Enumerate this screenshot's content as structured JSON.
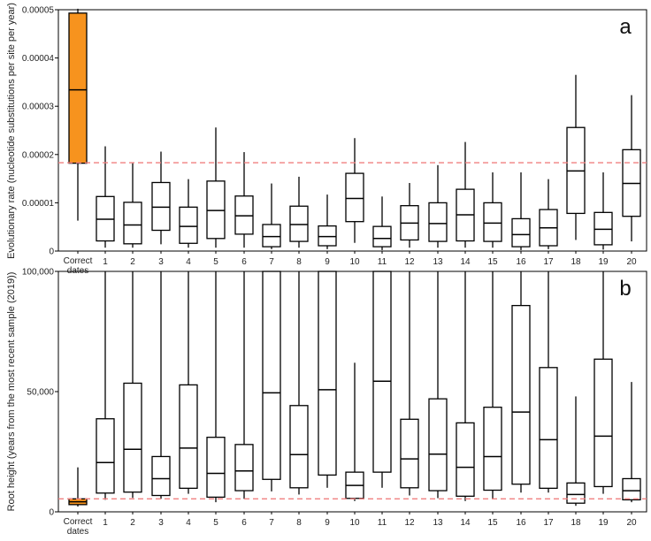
{
  "chart_data": [
    {
      "panel": "a",
      "type": "box",
      "ylabel": "Evolutionary rate (nucleotide substitutions per site per year)",
      "ylim": [
        0,
        5e-05
      ],
      "yticks": [
        0,
        1e-05,
        2e-05,
        3e-05,
        4e-05,
        5e-05
      ],
      "ytick_labels": [
        "0",
        "0.00001",
        "0.00002",
        "0.00003",
        "0.00004",
        "0.00005"
      ],
      "reference_line": 1.83e-05,
      "reference_color": "#f08080",
      "highlight_color": "#f7931e",
      "categories": [
        "Correct dates",
        "1",
        "2",
        "3",
        "4",
        "5",
        "6",
        "7",
        "8",
        "9",
        "10",
        "11",
        "12",
        "13",
        "14",
        "15",
        "16",
        "17",
        "18",
        "19",
        "20"
      ],
      "boxes": [
        {
          "whisker_low": 6.3e-06,
          "q1": 1.82e-05,
          "median": 3.34e-05,
          "q3": 4.93e-05,
          "whisker_high": 5.02e-05,
          "highlight": true
        },
        {
          "whisker_low": 7e-07,
          "q1": 2.1e-06,
          "median": 6.6e-06,
          "q3": 1.13e-05,
          "whisker_high": 2.17e-05
        },
        {
          "whisker_low": 7e-07,
          "q1": 1.5e-06,
          "median": 5.4e-06,
          "q3": 1.01e-05,
          "whisker_high": 1.82e-05
        },
        {
          "whisker_low": 1.4e-06,
          "q1": 4.3e-06,
          "median": 9.1e-06,
          "q3": 1.42e-05,
          "whisker_high": 2.06e-05
        },
        {
          "whisker_low": 7e-07,
          "q1": 1.6e-06,
          "median": 5.1e-06,
          "q3": 9.1e-06,
          "whisker_high": 1.49e-05
        },
        {
          "whisker_low": 7e-07,
          "q1": 2.6e-06,
          "median": 8.4e-06,
          "q3": 1.45e-05,
          "whisker_high": 2.56e-05
        },
        {
          "whisker_low": 7e-07,
          "q1": 3.5e-06,
          "median": 7.3e-06,
          "q3": 1.14e-05,
          "whisker_high": 2.05e-05
        },
        {
          "whisker_low": 4e-07,
          "q1": 9e-07,
          "median": 3e-06,
          "q3": 5.5e-06,
          "whisker_high": 1.4e-05
        },
        {
          "whisker_low": 7e-07,
          "q1": 2e-06,
          "median": 5.5e-06,
          "q3": 9.3e-06,
          "whisker_high": 1.54e-05
        },
        {
          "whisker_low": 4e-07,
          "q1": 1.1e-06,
          "median": 3e-06,
          "q3": 5.2e-06,
          "whisker_high": 1.17e-05
        },
        {
          "whisker_low": 1.7e-06,
          "q1": 6.1e-06,
          "median": 1.09e-05,
          "q3": 1.61e-05,
          "whisker_high": 2.34e-05
        },
        {
          "whisker_low": 2e-07,
          "q1": 9e-07,
          "median": 2.6e-06,
          "q3": 5.1e-06,
          "whisker_high": 1.13e-05
        },
        {
          "whisker_low": 7e-07,
          "q1": 2.3e-06,
          "median": 5.8e-06,
          "q3": 9.4e-06,
          "whisker_high": 1.41e-05
        },
        {
          "whisker_low": 7e-07,
          "q1": 2e-06,
          "median": 5.7e-06,
          "q3": 1e-05,
          "whisker_high": 1.78e-05
        },
        {
          "whisker_low": 7e-07,
          "q1": 2.1e-06,
          "median": 7.5e-06,
          "q3": 1.28e-05,
          "whisker_high": 2.26e-05
        },
        {
          "whisker_low": 7e-07,
          "q1": 2e-06,
          "median": 5.8e-06,
          "q3": 1e-05,
          "whisker_high": 1.63e-05
        },
        {
          "whisker_low": 2e-07,
          "q1": 9e-07,
          "median": 3.4e-06,
          "q3": 6.7e-06,
          "whisker_high": 1.63e-05
        },
        {
          "whisker_low": 4e-07,
          "q1": 1.1e-06,
          "median": 4.8e-06,
          "q3": 8.6e-06,
          "whisker_high": 1.49e-05
        },
        {
          "whisker_low": 2.3e-06,
          "q1": 7.8e-06,
          "median": 1.66e-05,
          "q3": 2.56e-05,
          "whisker_high": 3.65e-05
        },
        {
          "whisker_low": 3e-07,
          "q1": 1.3e-06,
          "median": 4.5e-06,
          "q3": 8e-06,
          "whisker_high": 1.63e-05
        },
        {
          "whisker_low": 2e-06,
          "q1": 7.2e-06,
          "median": 1.4e-05,
          "q3": 2.1e-05,
          "whisker_high": 3.23e-05
        }
      ]
    },
    {
      "panel": "b",
      "type": "box",
      "ylabel": "Root height (years from the most recent sample (2019))",
      "ylim": [
        0,
        100000
      ],
      "yticks": [
        0,
        50000,
        100000
      ],
      "ytick_labels": [
        "0",
        "50,000",
        "100,000"
      ],
      "reference_line": 5400,
      "reference_color": "#f08080",
      "highlight_color": "#f7931e",
      "categories": [
        "Correct dates",
        "1",
        "2",
        "3",
        "4",
        "5",
        "6",
        "7",
        "8",
        "9",
        "10",
        "11",
        "12",
        "13",
        "14",
        "15",
        "16",
        "17",
        "18",
        "19",
        "20"
      ],
      "boxes": [
        {
          "whisker_low": 2200,
          "q1": 3000,
          "median": 4200,
          "q3": 5400,
          "whisker_high": 18500,
          "highlight": true
        },
        {
          "whisker_low": 5000,
          "q1": 7800,
          "median": 20500,
          "q3": 38700,
          "whisker_high": 100000
        },
        {
          "whisker_low": 5800,
          "q1": 8200,
          "median": 26000,
          "q3": 53500,
          "whisker_high": 100000
        },
        {
          "whisker_low": 5400,
          "q1": 6800,
          "median": 13800,
          "q3": 23000,
          "whisker_high": 100000
        },
        {
          "whisker_low": 7500,
          "q1": 9800,
          "median": 26500,
          "q3": 52800,
          "whisker_high": 100000
        },
        {
          "whisker_low": 4000,
          "q1": 6100,
          "median": 16000,
          "q3": 31000,
          "whisker_high": 100000
        },
        {
          "whisker_low": 5400,
          "q1": 8800,
          "median": 17000,
          "q3": 28000,
          "whisker_high": 100000
        },
        {
          "whisker_low": 8500,
          "q1": 13500,
          "median": 49500,
          "q3": 100000,
          "whisker_high": 100000
        },
        {
          "whisker_low": 7200,
          "q1": 10000,
          "median": 23800,
          "q3": 44200,
          "whisker_high": 100000
        },
        {
          "whisker_low": 10000,
          "q1": 15300,
          "median": 50800,
          "q3": 100000,
          "whisker_high": 100000
        },
        {
          "whisker_low": 4500,
          "q1": 5600,
          "median": 11000,
          "q3": 16500,
          "whisker_high": 62000
        },
        {
          "whisker_low": 10000,
          "q1": 16500,
          "median": 54300,
          "q3": 100000,
          "whisker_high": 100000
        },
        {
          "whisker_low": 6800,
          "q1": 10000,
          "median": 22000,
          "q3": 38500,
          "whisker_high": 100000
        },
        {
          "whisker_low": 5700,
          "q1": 8800,
          "median": 24000,
          "q3": 47000,
          "whisker_high": 100000
        },
        {
          "whisker_low": 4500,
          "q1": 6500,
          "median": 18500,
          "q3": 37000,
          "whisker_high": 100000
        },
        {
          "whisker_low": 5400,
          "q1": 9000,
          "median": 23000,
          "q3": 43500,
          "whisker_high": 100000
        },
        {
          "whisker_low": 8000,
          "q1": 11500,
          "median": 41500,
          "q3": 85800,
          "whisker_high": 100000
        },
        {
          "whisker_low": 8000,
          "q1": 9800,
          "median": 30000,
          "q3": 60000,
          "whisker_high": 100000
        },
        {
          "whisker_low": 2500,
          "q1": 3600,
          "median": 7200,
          "q3": 12000,
          "whisker_high": 48000
        },
        {
          "whisker_low": 7500,
          "q1": 10500,
          "median": 31500,
          "q3": 63500,
          "whisker_high": 100000
        },
        {
          "whisker_low": 4000,
          "q1": 5000,
          "median": 8800,
          "q3": 13800,
          "whisker_high": 54000
        }
      ]
    }
  ]
}
